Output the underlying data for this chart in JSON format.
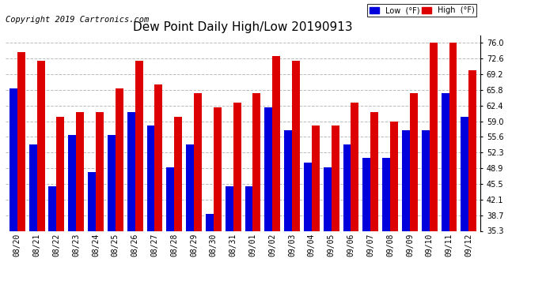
{
  "title": "Dew Point Daily High/Low 20190913",
  "copyright": "Copyright 2019 Cartronics.com",
  "legend_low": "Low  (°F)",
  "legend_high": "High  (°F)",
  "dates": [
    "08/20",
    "08/21",
    "08/22",
    "08/23",
    "08/24",
    "08/25",
    "08/26",
    "08/27",
    "08/28",
    "08/29",
    "08/30",
    "08/31",
    "09/01",
    "09/02",
    "09/03",
    "09/04",
    "09/05",
    "09/06",
    "09/07",
    "09/08",
    "09/09",
    "09/10",
    "09/11",
    "09/12"
  ],
  "low_values": [
    66,
    54,
    45,
    56,
    48,
    56,
    61,
    58,
    49,
    54,
    39,
    45,
    45,
    62,
    57,
    50,
    49,
    54,
    51,
    51,
    57,
    57,
    65,
    60
  ],
  "high_values": [
    74,
    72,
    60,
    61,
    61,
    66,
    72,
    67,
    60,
    65,
    62,
    63,
    65,
    73,
    72,
    58,
    58,
    63,
    61,
    59,
    65,
    76,
    76,
    70
  ],
  "ylim_min": 35.3,
  "ylim_max": 77.5,
  "yticks": [
    35.3,
    38.7,
    42.1,
    45.5,
    48.9,
    52.3,
    55.6,
    59.0,
    62.4,
    65.8,
    69.2,
    72.6,
    76.0
  ],
  "bar_width": 0.4,
  "low_color": "#0000dd",
  "high_color": "#dd0000",
  "bg_color": "#ffffff",
  "grid_color": "#bbbbbb",
  "title_fontsize": 11,
  "tick_fontsize": 7,
  "copyright_fontsize": 7.5
}
